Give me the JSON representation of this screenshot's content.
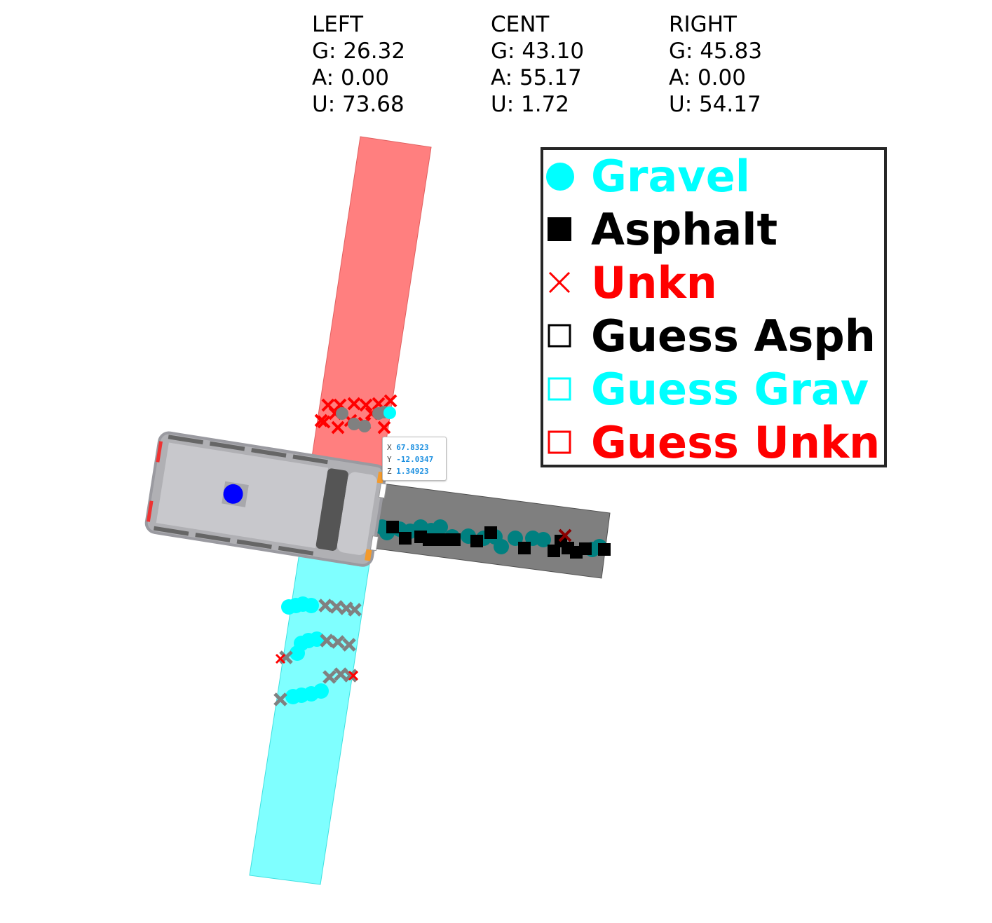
{
  "stats": {
    "left": {
      "title": "LEFT",
      "g": "G: 26.32",
      "a": "A: 0.00",
      "u": "U: 73.68"
    },
    "cent": {
      "title": "CENT",
      "g": "G: 43.10",
      "a": "A: 55.17",
      "u": "U: 1.72"
    },
    "right": {
      "title": "RIGHT",
      "g": "G: 45.83",
      "a": "A: 0.00",
      "u": "U: 54.17"
    }
  },
  "legend": {
    "items": [
      {
        "label": "Gravel",
        "marker": "filled-circle",
        "color": "#00ffff"
      },
      {
        "label": "Asphalt",
        "marker": "filled-square",
        "color": "#000000"
      },
      {
        "label": "Unkn",
        "marker": "x-cross",
        "color": "#ff0000"
      },
      {
        "label": "Guess Asph",
        "marker": "hollow-square",
        "color": "#000000"
      },
      {
        "label": "Guess Grav",
        "marker": "hollow-square",
        "color": "#00ffff"
      },
      {
        "label": "Guess Unkn",
        "marker": "hollow-square",
        "color": "#ff0000"
      }
    ]
  },
  "coord_readout": {
    "x_key": "X",
    "x_val": "67.8323",
    "y_key": "Y",
    "y_val": "-12.0347",
    "z_key": "Z",
    "z_val": "1.34923"
  },
  "colors": {
    "left_zone": "#ff7f7f",
    "center_zone": "#7f7f7f",
    "right_zone": "#7fffff",
    "vehicle_body": "#c8c8cc",
    "vehicle_dot": "#0000ff",
    "gravel_marker": "#00ffff",
    "gravel_dim": "#008080",
    "asphalt_marker": "#000000",
    "unkn_marker": "#ff0000",
    "sample_gray": "#808080"
  }
}
